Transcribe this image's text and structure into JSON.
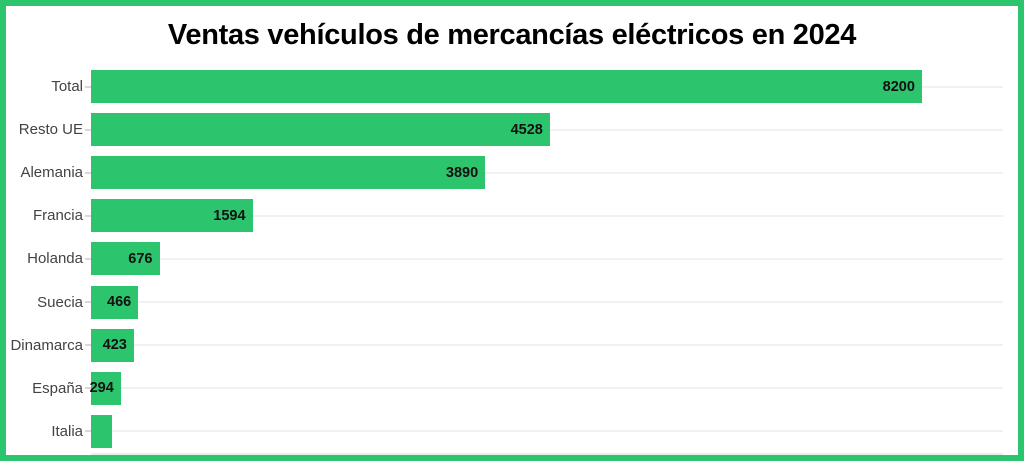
{
  "title": "Ventas vehículos de mercancías eléctricos en 2024",
  "colors": {
    "frame": "#2dc46e",
    "bar": "#2dc46e",
    "title": "#000000",
    "label": "#434343",
    "value": "#111111",
    "grid": "#f1f1f1",
    "axis": "#ececec",
    "tick": "#d9d9d9"
  },
  "chart_data": {
    "type": "bar",
    "orientation": "horizontal",
    "title": "Ventas vehículos de mercancías eléctricos en 2024",
    "categories": [
      "Total",
      "Resto UE",
      "Alemania",
      "Francia",
      "Holanda",
      "Suecia",
      "Dinamarca",
      "España",
      "Italia"
    ],
    "values": [
      8200,
      4528,
      3890,
      1594,
      676,
      466,
      423,
      294,
      210
    ],
    "value_labels": [
      "8200",
      "4528",
      "3890",
      "1594",
      "676",
      "466",
      "423",
      "294",
      ""
    ],
    "xlabel": "",
    "ylabel": "",
    "xlim": [
      0,
      9000
    ],
    "x_tick_interval": 1000,
    "grid": "horizontal row lines, light gray",
    "legend": "none",
    "notes": "Italia bar drawn without a printed value label; value estimated from bar length"
  }
}
